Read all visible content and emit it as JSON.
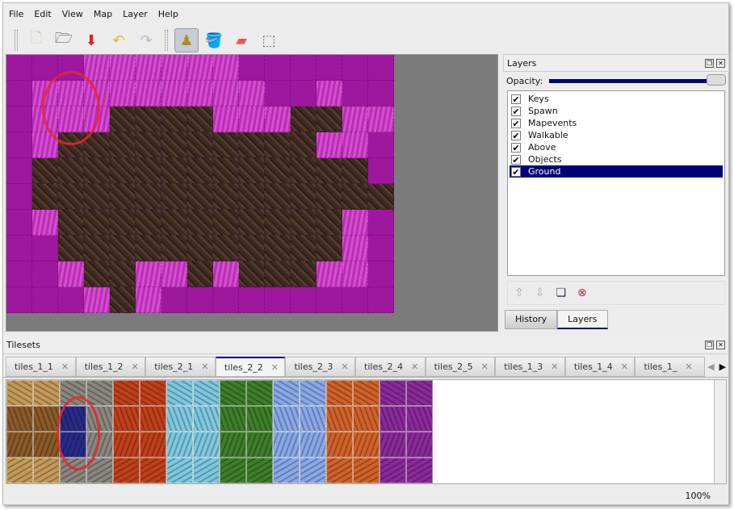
{
  "menu": [
    "File",
    "Edit",
    "View",
    "Map",
    "Layer",
    "Help"
  ],
  "toolbar": [
    {
      "name": "new-icon",
      "glyph": "🗋"
    },
    {
      "name": "open-icon",
      "glyph": "🗁"
    },
    {
      "name": "save-icon",
      "glyph": "⬇"
    },
    {
      "name": "undo-icon",
      "glyph": "↶"
    },
    {
      "name": "redo-icon",
      "glyph": "↷"
    },
    {
      "name": "stamp-brush-icon",
      "glyph": "♟"
    },
    {
      "name": "bucket-fill-icon",
      "glyph": "🪣"
    },
    {
      "name": "eraser-icon",
      "glyph": "▰"
    },
    {
      "name": "rect-select-icon",
      "glyph": "⬚"
    }
  ],
  "layers_panel": {
    "title": "Layers",
    "opacity_label": "Opacity:",
    "opacity": 1.0,
    "layers": [
      {
        "name": "Keys",
        "visible": true
      },
      {
        "name": "Spawn",
        "visible": true
      },
      {
        "name": "Mapevents",
        "visible": true
      },
      {
        "name": "Walkable",
        "visible": true
      },
      {
        "name": "Above",
        "visible": true
      },
      {
        "name": "Objects",
        "visible": true
      },
      {
        "name": "Ground",
        "visible": true,
        "selected": true
      }
    ],
    "tabs": [
      "History",
      "Layers"
    ],
    "active_tab": "Layers"
  },
  "tilesets": {
    "title": "Tilesets",
    "tabs": [
      "tiles_1_1",
      "tiles_1_2",
      "tiles_2_1",
      "tiles_2_2",
      "tiles_2_3",
      "tiles_2_4",
      "tiles_2_5",
      "tiles_1_3",
      "tiles_1_4",
      "tiles_1_"
    ],
    "active_tab": "tiles_2_2"
  },
  "status": {
    "zoom": "100%"
  },
  "colors": {
    "selection": "#00007a",
    "magenta": "#a0179f",
    "dirt": "#3c2a22",
    "annotation": "#e62828"
  }
}
